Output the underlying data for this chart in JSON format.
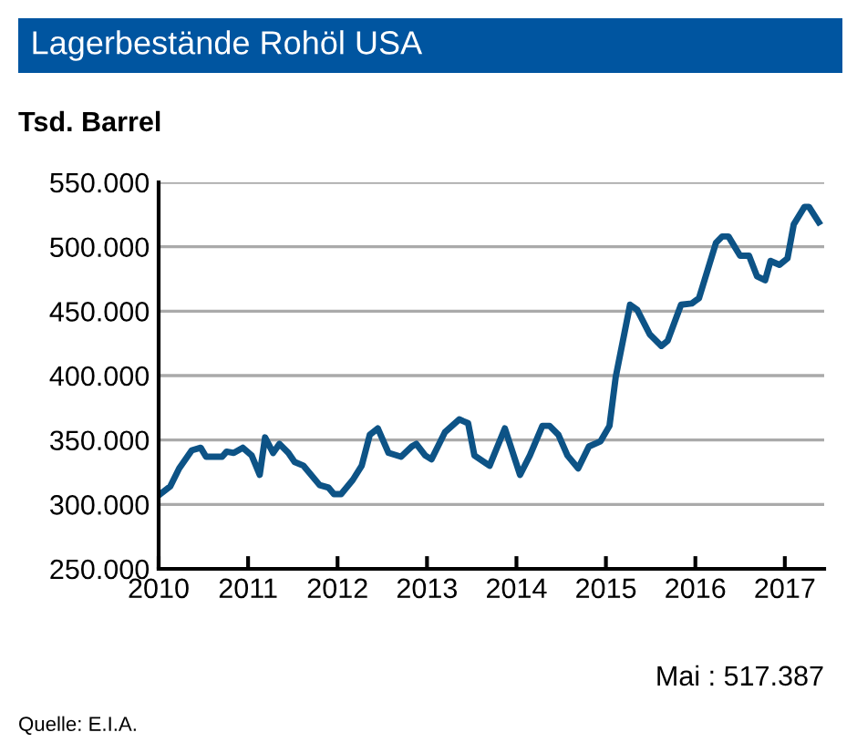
{
  "chart_data": {
    "type": "line",
    "title": "Lagerbestände Rohöl USA",
    "ylabel": "Tsd. Barrel",
    "x": [
      2010.0,
      2010.13,
      2010.23,
      2010.37,
      2010.47,
      2010.53,
      2010.71,
      2010.76,
      2010.84,
      2010.94,
      2011.04,
      2011.13,
      2011.19,
      2011.28,
      2011.35,
      2011.45,
      2011.52,
      2011.62,
      2011.8,
      2011.9,
      2011.96,
      2012.04,
      2012.17,
      2012.27,
      2012.36,
      2012.45,
      2012.57,
      2012.71,
      2012.83,
      2012.88,
      2012.98,
      2013.05,
      2013.2,
      2013.36,
      2013.46,
      2013.53,
      2013.7,
      2013.87,
      2014.04,
      2014.15,
      2014.29,
      2014.37,
      2014.47,
      2014.57,
      2014.69,
      2014.81,
      2014.94,
      2015.04,
      2015.11,
      2015.27,
      2015.35,
      2015.49,
      2015.62,
      2015.69,
      2015.84,
      2015.96,
      2016.04,
      2016.23,
      2016.3,
      2016.37,
      2016.5,
      2016.6,
      2016.69,
      2016.78,
      2016.84,
      2016.94,
      2017.03,
      2017.1,
      2017.22,
      2017.27,
      2017.38
    ],
    "series": [
      {
        "color": "#0d5386",
        "values": [
          307000,
          314000,
          328000,
          342000,
          344000,
          337000,
          337000,
          341000,
          340000,
          344000,
          338000,
          323000,
          352000,
          340000,
          347000,
          340000,
          333000,
          330000,
          315000,
          313000,
          308000,
          308000,
          319000,
          330000,
          354000,
          359000,
          340000,
          337000,
          345000,
          347000,
          338000,
          335000,
          356000,
          366000,
          363000,
          338000,
          330000,
          359000,
          323000,
          338000,
          361000,
          361000,
          354000,
          338000,
          328000,
          345000,
          349000,
          361000,
          399000,
          455000,
          451000,
          432000,
          423000,
          427000,
          455000,
          456000,
          460000,
          503000,
          508000,
          508000,
          493000,
          493000,
          477000,
          474000,
          489000,
          486000,
          491000,
          517387,
          531000,
          531000,
          519000
        ]
      }
    ],
    "xlim": [
      2010.0,
      2017.44
    ],
    "xticks": [
      2010,
      2011,
      2012,
      2013,
      2014,
      2015,
      2016,
      2017
    ],
    "ylim": [
      250000,
      550000
    ],
    "yticks": [
      {
        "value": 250000,
        "label": "250.000"
      },
      {
        "value": 300000,
        "label": "300.000"
      },
      {
        "value": 350000,
        "label": "350.000"
      },
      {
        "value": 400000,
        "label": "400.000"
      },
      {
        "value": 450000,
        "label": "450.000"
      },
      {
        "value": 500000,
        "label": "500.000"
      },
      {
        "value": 550000,
        "label": "550.000"
      }
    ],
    "grid": "y",
    "legend": false,
    "marker": "none",
    "line_style": "solid",
    "annotations": [
      "Mai : 517.387",
      "Quelle: E.I.A."
    ]
  }
}
